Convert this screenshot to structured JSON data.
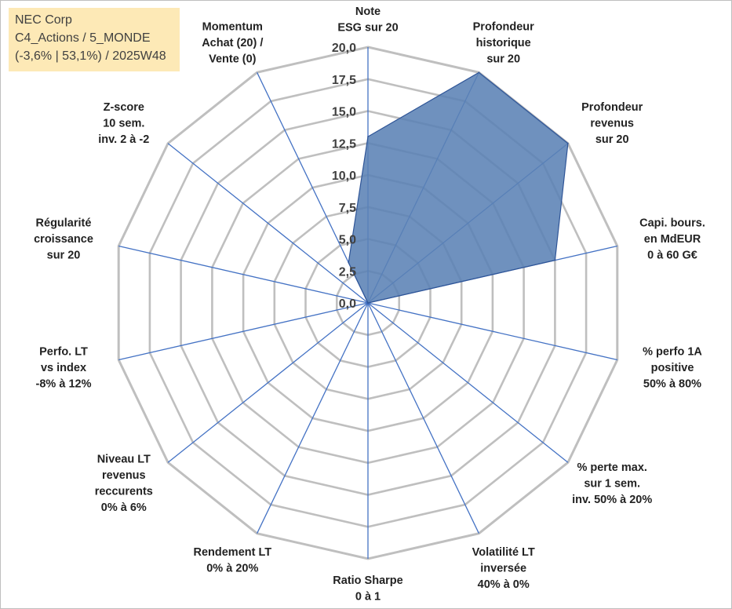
{
  "info": {
    "company": "NEC Corp",
    "category": "C4_Actions / 5_MONDE",
    "stats": "(-3,6% | 53,1%) / 2025W48"
  },
  "chart_data": {
    "type": "radar",
    "range": [
      0,
      20
    ],
    "ticks": [
      "0,0",
      "2,5",
      "5,0",
      "7,5",
      "10,0",
      "12,5",
      "15,0",
      "17,5",
      "20,0"
    ],
    "tick_values": [
      0,
      2.5,
      5,
      7.5,
      10,
      12.5,
      15,
      17.5,
      20
    ],
    "colors": {
      "grid": "#bfbfbf",
      "spoke": "#4472c4",
      "fill": "#5b82b5",
      "stroke": "#2f5597"
    },
    "axes": [
      {
        "lines": [
          "Note",
          "ESG sur 20"
        ],
        "value": 13
      },
      {
        "lines": [
          "Profondeur",
          "historique",
          "sur 20"
        ],
        "value": 20
      },
      {
        "lines": [
          "Profondeur",
          "revenus",
          "sur 20"
        ],
        "value": 20
      },
      {
        "lines": [
          "Capi. bours.",
          "en MdEUR",
          "0 à 60 G€"
        ],
        "value": 15
      },
      {
        "lines": [
          "% perfo 1A",
          "positive",
          "50% à 80%"
        ],
        "value": 0
      },
      {
        "lines": [
          "% perte max.",
          "sur 1 sem.",
          "inv. 50% à 20%"
        ],
        "value": 0
      },
      {
        "lines": [
          "Volatilité LT",
          "inversée",
          "40% à 0%"
        ],
        "value": 0
      },
      {
        "lines": [
          "Ratio Sharpe",
          "0 à 1"
        ],
        "value": 0
      },
      {
        "lines": [
          "Rendement LT",
          "0% à 20%"
        ],
        "value": 0
      },
      {
        "lines": [
          "Niveau LT",
          "revenus",
          "reccurents",
          "0% à 6%"
        ],
        "value": 0
      },
      {
        "lines": [
          "Perfo. LT",
          "vs index",
          "-8% à 12%"
        ],
        "value": 0
      },
      {
        "lines": [
          "Régularité",
          "croissance",
          "sur 20"
        ],
        "value": 0
      },
      {
        "lines": [
          "Z-score",
          "10 sem.",
          "inv. 2 à -2"
        ],
        "value": 0
      },
      {
        "lines": [
          "Momentum",
          "Achat (20) /",
          "Vente (0)"
        ],
        "value": 3.5
      }
    ]
  }
}
